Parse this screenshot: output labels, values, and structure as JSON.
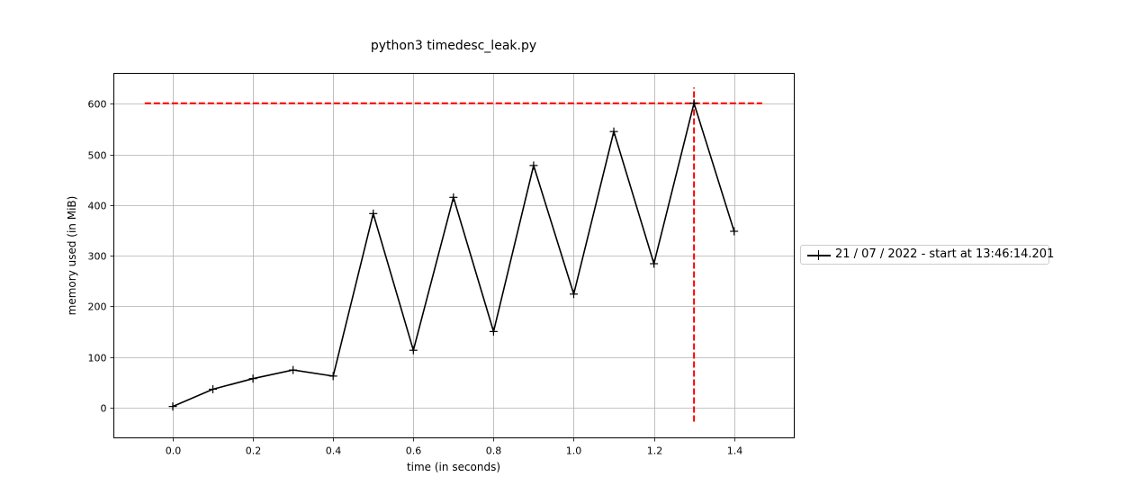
{
  "chart_data": {
    "type": "line",
    "title": "python3 timedesc_leak.py",
    "xlabel": "time (in seconds)",
    "ylabel": "memory used (in MiB)",
    "xlim": [
      -0.147,
      1.55
    ],
    "ylim": [
      -60,
      660
    ],
    "xticks": [
      0.0,
      0.2,
      0.4,
      0.6,
      0.8,
      1.0,
      1.2,
      1.4
    ],
    "xtick_labels": [
      "0.0",
      "0.2",
      "0.4",
      "0.6",
      "0.8",
      "1.0",
      "1.2",
      "1.4"
    ],
    "yticks": [
      0,
      100,
      200,
      300,
      400,
      500,
      600
    ],
    "ytick_labels": [
      "0",
      "100",
      "200",
      "300",
      "400",
      "500",
      "600"
    ],
    "grid": true,
    "legend_position": "right-outside",
    "series": [
      {
        "name": "21 / 07 / 2022 - start at 13:46:14.201",
        "color": "#000000",
        "marker": "+",
        "x": [
          0.0,
          0.1,
          0.2,
          0.3,
          0.4,
          0.5,
          0.6,
          0.7,
          0.8,
          0.9,
          1.0,
          1.1,
          1.2,
          1.3,
          1.4
        ],
        "y": [
          2,
          36,
          57,
          74,
          62,
          383,
          113,
          415,
          150,
          478,
          224,
          545,
          284,
          601,
          348
        ]
      }
    ],
    "reference_lines": [
      {
        "orientation": "horizontal",
        "y": 601,
        "x_range": [
          -0.07,
          1.47
        ],
        "color": "#ff0000",
        "style": "dashed"
      },
      {
        "orientation": "vertical",
        "x": 1.3,
        "y_range": [
          -28,
          632
        ],
        "color": "#ff0000",
        "style": "dashed"
      }
    ]
  }
}
